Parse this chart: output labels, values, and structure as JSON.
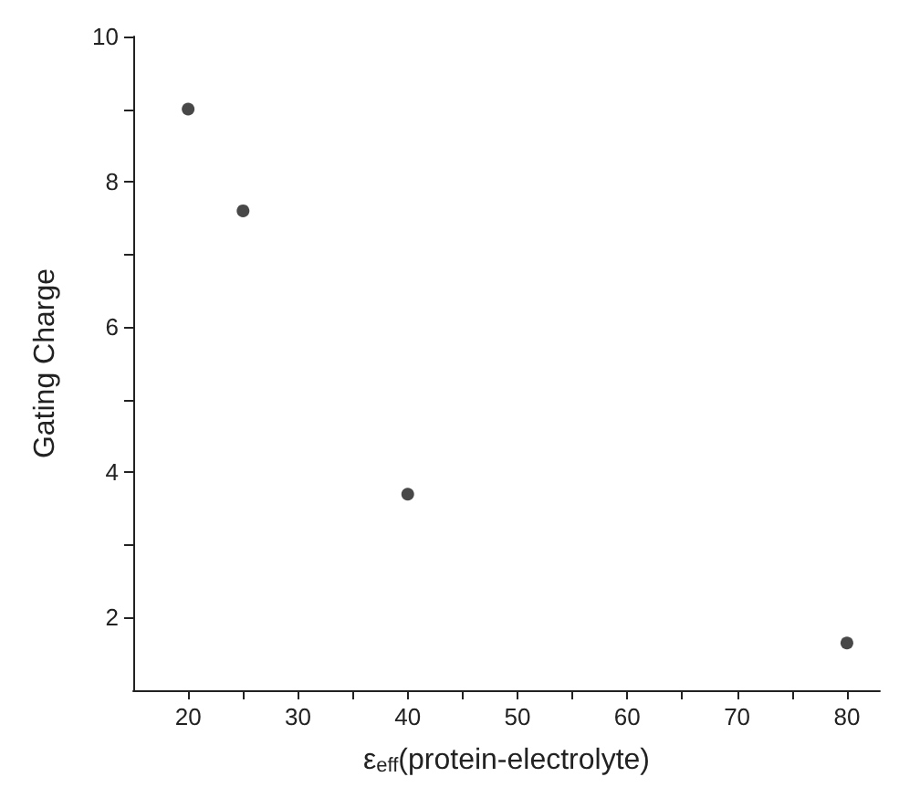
{
  "chart_data": {
    "type": "scatter",
    "xlabel": "ε$_{eff}$(protein-electrolyte)",
    "ylabel": "Gating Charge",
    "x": [
      20,
      25,
      40,
      80
    ],
    "values": [
      9.0,
      7.6,
      3.7,
      1.65
    ],
    "color": "#1a1a1a",
    "marker": "circle",
    "grid": false,
    "xlim": [
      15,
      83
    ],
    "xticks": [
      20,
      {
        "value": 25,
        "label": null
      },
      30,
      {
        "value": 35,
        "label": null
      },
      40,
      {
        "value": 45,
        "label": null
      },
      50,
      {
        "value": 55,
        "label": null
      },
      60,
      {
        "value": 65,
        "label": null
      },
      70,
      {
        "value": 75,
        "label": null
      },
      80
    ],
    "ylim": [
      1,
      10
    ],
    "yticks": [
      2,
      {
        "value": 3,
        "label": null
      },
      4,
      {
        "value": 5,
        "label": null
      },
      6,
      {
        "value": 7,
        "label": null
      },
      8,
      {
        "value": 9,
        "label": null
      },
      10
    ]
  }
}
